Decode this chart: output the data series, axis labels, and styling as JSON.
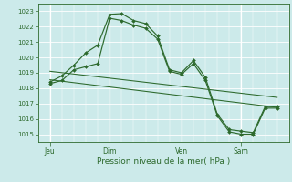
{
  "xlabel": "Pression niveau de la mer( hPa )",
  "bg_color": "#cceaea",
  "grid_color": "#ffffff",
  "line_color": "#2d6a2d",
  "ylim": [
    1014.5,
    1023.5
  ],
  "yticks": [
    1015,
    1016,
    1017,
    1018,
    1019,
    1020,
    1021,
    1022,
    1023
  ],
  "xtick_labels": [
    "Jeu",
    "Dim",
    "Ven",
    "Sam"
  ],
  "xtick_positions": [
    0.5,
    3.0,
    6.0,
    8.5
  ],
  "xlim": [
    0.0,
    10.5
  ],
  "line1_x": [
    0.5,
    1.0,
    1.5,
    2.0,
    2.5,
    3.0,
    3.5,
    4.0,
    4.5,
    5.0,
    5.5,
    6.0,
    6.5,
    7.0,
    7.5,
    8.0,
    8.5,
    9.0,
    9.5,
    10.0
  ],
  "line1_y": [
    1018.4,
    1018.8,
    1019.5,
    1020.3,
    1020.8,
    1022.8,
    1022.85,
    1022.4,
    1022.2,
    1021.4,
    1019.2,
    1019.0,
    1019.8,
    1018.7,
    1016.3,
    1015.3,
    1015.2,
    1015.1,
    1016.8,
    1016.8
  ],
  "line2_x": [
    0.5,
    1.0,
    1.5,
    2.0,
    2.5,
    3.0,
    3.5,
    4.0,
    4.5,
    5.0,
    5.5,
    6.0,
    6.5,
    7.0,
    7.5,
    8.0,
    8.5,
    9.0,
    9.5,
    10.0
  ],
  "line2_y": [
    1018.3,
    1018.5,
    1019.2,
    1019.4,
    1019.6,
    1022.55,
    1022.4,
    1022.1,
    1021.9,
    1021.2,
    1019.1,
    1018.9,
    1019.6,
    1018.5,
    1016.2,
    1015.15,
    1015.0,
    1015.0,
    1016.7,
    1016.7
  ],
  "trend1_x": [
    0.5,
    10.0
  ],
  "trend1_y": [
    1019.1,
    1017.4
  ],
  "trend2_x": [
    0.5,
    10.0
  ],
  "trend2_y": [
    1018.55,
    1016.75
  ],
  "major_vlines": [
    0.5,
    3.0,
    6.0,
    8.5
  ],
  "minor_vlines_count": 20,
  "marker": "D",
  "markersize": 2.0,
  "linewidth": 0.85
}
